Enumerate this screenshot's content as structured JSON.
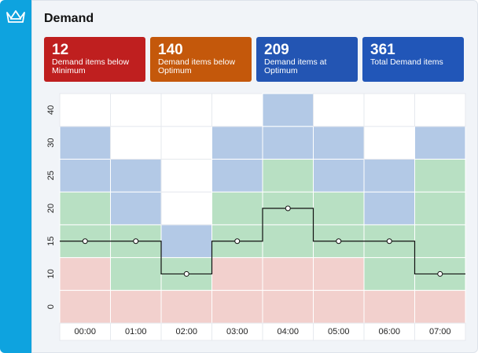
{
  "header": {
    "title": "Demand"
  },
  "cards": [
    {
      "value": 12,
      "label": "Demand items below Minimum",
      "color": "#bf1f1f"
    },
    {
      "value": 140,
      "label": "Demand items below Optimum",
      "color": "#c4580b"
    },
    {
      "value": 209,
      "label": "Demand items at Optimum",
      "color": "#2355b3"
    },
    {
      "value": 361,
      "label": "Total Demand items",
      "color": "#2156b8"
    }
  ],
  "chart_data": {
    "type": "step-line",
    "categories": [
      "00:00",
      "01:00",
      "02:00",
      "03:00",
      "04:00",
      "05:00",
      "06:00",
      "07:00"
    ],
    "y_categories": [
      0,
      10,
      15,
      20,
      25,
      30,
      40
    ],
    "values": [
      15,
      15,
      10,
      15,
      20,
      15,
      15,
      10
    ],
    "line_color": "#111111",
    "cell_colors": [
      [
        "#f2d0cd",
        "#f2d0cd",
        "#b8e0c3",
        "#b8e0c3",
        "#b3c9e6",
        "#b3c9e6",
        "#ffffff"
      ],
      [
        "#f2d0cd",
        "#b8e0c3",
        "#b8e0c3",
        "#b3c9e6",
        "#b3c9e6",
        "#ffffff",
        "#ffffff"
      ],
      [
        "#f2d0cd",
        "#b8e0c3",
        "#b3c9e6",
        "#ffffff",
        "#ffffff",
        "#ffffff",
        "#ffffff"
      ],
      [
        "#f2d0cd",
        "#f2d0cd",
        "#b8e0c3",
        "#b8e0c3",
        "#b3c9e6",
        "#b3c9e6",
        "#ffffff"
      ],
      [
        "#f2d0cd",
        "#f2d0cd",
        "#b8e0c3",
        "#b8e0c3",
        "#b8e0c3",
        "#b3c9e6",
        "#b3c9e6"
      ],
      [
        "#f2d0cd",
        "#f2d0cd",
        "#b8e0c3",
        "#b8e0c3",
        "#b3c9e6",
        "#b3c9e6",
        "#ffffff"
      ],
      [
        "#f2d0cd",
        "#b8e0c3",
        "#b8e0c3",
        "#b3c9e6",
        "#b3c9e6",
        "#ffffff",
        "#ffffff"
      ],
      [
        "#f2d0cd",
        "#b8e0c3",
        "#b8e0c3",
        "#b8e0c3",
        "#b8e0c3",
        "#b3c9e6",
        "#ffffff"
      ]
    ]
  }
}
